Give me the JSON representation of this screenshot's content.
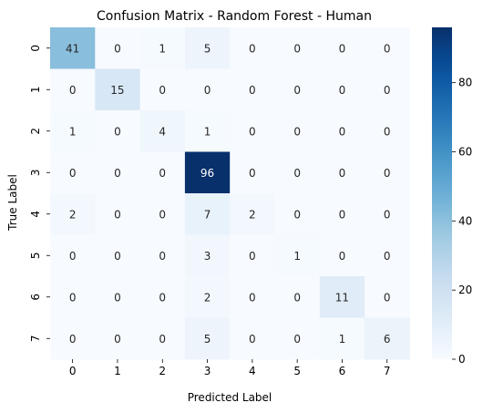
{
  "chart_data": {
    "type": "heatmap",
    "title": "Confusion Matrix - Random Forest - Human",
    "xlabel": "Predicted Label",
    "ylabel": "True Label",
    "x_categories": [
      "0",
      "1",
      "2",
      "3",
      "4",
      "5",
      "6",
      "7"
    ],
    "y_categories": [
      "0",
      "1",
      "2",
      "3",
      "4",
      "5",
      "6",
      "7"
    ],
    "values": [
      [
        41,
        0,
        1,
        5,
        0,
        0,
        0,
        0
      ],
      [
        0,
        15,
        0,
        0,
        0,
        0,
        0,
        0
      ],
      [
        1,
        0,
        4,
        1,
        0,
        0,
        0,
        0
      ],
      [
        0,
        0,
        0,
        96,
        0,
        0,
        0,
        0
      ],
      [
        2,
        0,
        0,
        7,
        2,
        0,
        0,
        0
      ],
      [
        0,
        0,
        0,
        3,
        0,
        1,
        0,
        0
      ],
      [
        0,
        0,
        0,
        2,
        0,
        0,
        11,
        0
      ],
      [
        0,
        0,
        0,
        5,
        0,
        0,
        1,
        6
      ]
    ],
    "colorscale": "Blues",
    "colorbar": {
      "range": [
        0,
        96
      ],
      "ticks": [
        0,
        20,
        40,
        60,
        80
      ]
    },
    "annotations": "cell counts"
  }
}
